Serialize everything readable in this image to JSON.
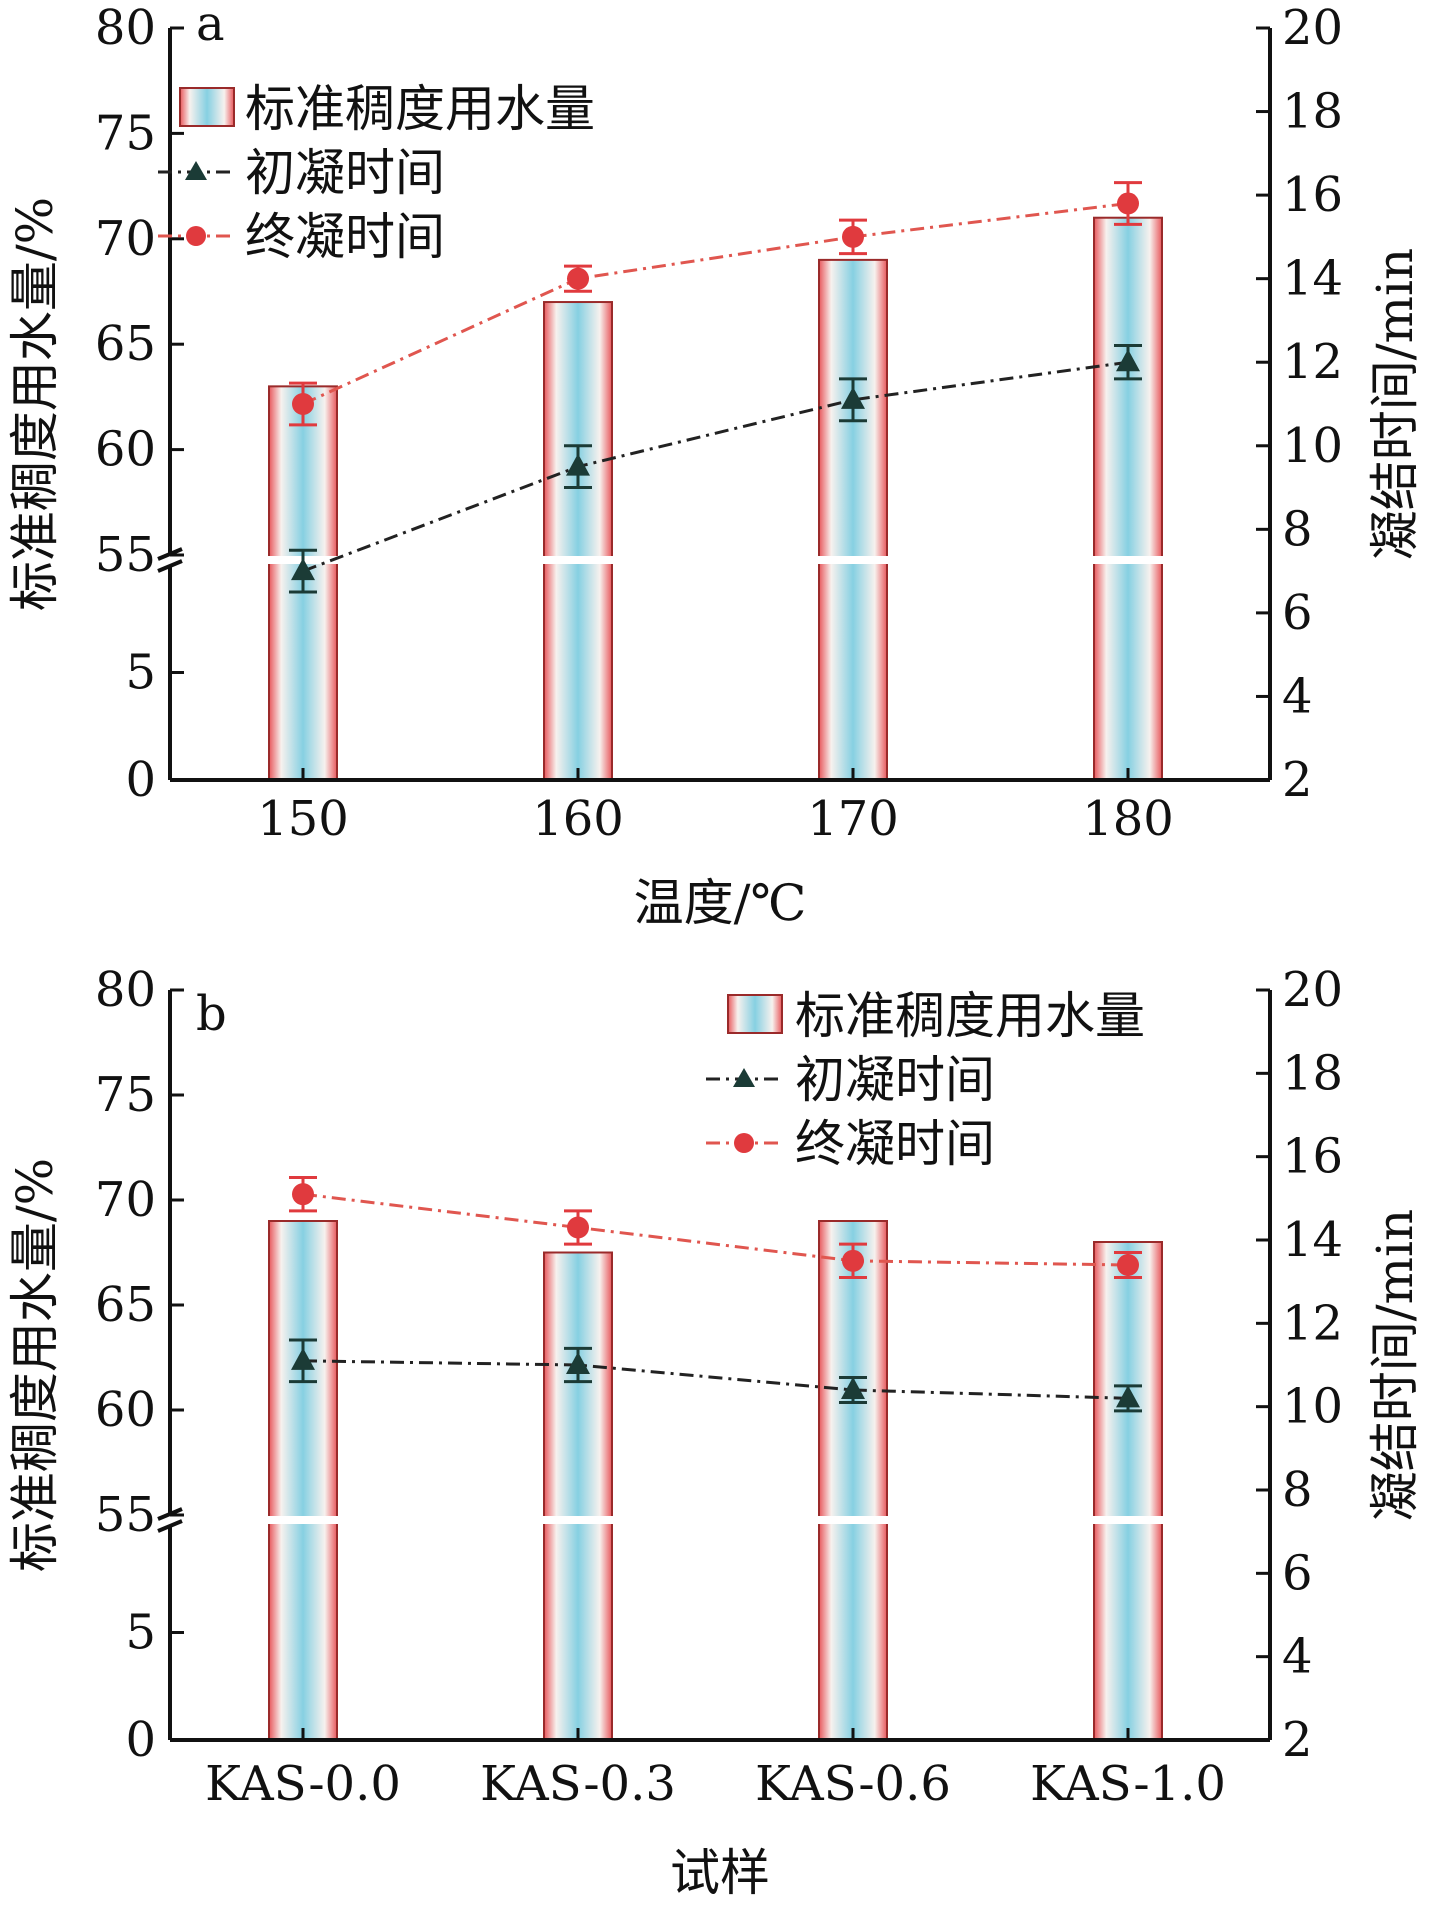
{
  "colors": {
    "axis": "#111111",
    "initial_setting": "#1b3b36",
    "final_setting": "#e03a3e",
    "initial_line": "#222222",
    "final_line": "#e0564f",
    "bar_edge": "#9a2a2a",
    "bar_red": "#e8585c",
    "bar_white": "#f7f1ee",
    "bar_blue": "#86d0e2"
  },
  "chart_data": [
    {
      "panel": "a",
      "type": "bar",
      "xlabel": "温度/℃",
      "ylabel_left": "标准稠度用水量/%",
      "ylabel_right": "凝结时间/min",
      "categories": [
        "150",
        "160",
        "170",
        "180"
      ],
      "left_axis": {
        "broken": true,
        "lower_ticks": [
          "0",
          "5"
        ],
        "upper_ticks": [
          "55",
          "60",
          "65",
          "70",
          "75",
          "80"
        ],
        "upper_range": [
          55,
          80
        ],
        "lower_range": [
          0,
          10
        ]
      },
      "right_axis": {
        "ticks": [
          "2",
          "4",
          "6",
          "8",
          "10",
          "12",
          "14",
          "16",
          "18",
          "20"
        ],
        "range": [
          2,
          20
        ]
      },
      "legend": {
        "position": "top-left",
        "entries": [
          "标准稠度用水量",
          "初凝时间",
          "终凝时间"
        ]
      },
      "series": [
        {
          "name": "标准稠度用水量",
          "type": "bar",
          "axis": "left",
          "values": [
            63.0,
            67.0,
            69.0,
            71.0
          ]
        },
        {
          "name": "初凝时间",
          "type": "line",
          "axis": "right",
          "marker": "triangle",
          "values": [
            7.0,
            9.5,
            11.1,
            12.0
          ],
          "errors": [
            0.5,
            0.5,
            0.5,
            0.4
          ]
        },
        {
          "name": "终凝时间",
          "type": "line",
          "axis": "right",
          "marker": "circle",
          "values": [
            11.0,
            14.0,
            15.0,
            15.8
          ],
          "errors": [
            0.5,
            0.3,
            0.4,
            0.5
          ]
        }
      ]
    },
    {
      "panel": "b",
      "type": "bar",
      "xlabel": "试样",
      "ylabel_left": "标准稠度用水量/%",
      "ylabel_right": "凝结时间/min",
      "categories": [
        "KAS-0.0",
        "KAS-0.3",
        "KAS-0.6",
        "KAS-1.0"
      ],
      "left_axis": {
        "broken": true,
        "lower_ticks": [
          "0",
          "5"
        ],
        "upper_ticks": [
          "55",
          "60",
          "65",
          "70",
          "75",
          "80"
        ],
        "upper_range": [
          55,
          80
        ],
        "lower_range": [
          0,
          10
        ]
      },
      "right_axis": {
        "ticks": [
          "2",
          "4",
          "6",
          "8",
          "10",
          "12",
          "14",
          "16",
          "18",
          "20"
        ],
        "range": [
          2,
          20
        ]
      },
      "legend": {
        "position": "top-right",
        "entries": [
          "标准稠度用水量",
          "初凝时间",
          "终凝时间"
        ]
      },
      "series": [
        {
          "name": "标准稠度用水量",
          "type": "bar",
          "axis": "left",
          "values": [
            69.0,
            67.5,
            69.0,
            68.0
          ]
        },
        {
          "name": "初凝时间",
          "type": "line",
          "axis": "right",
          "marker": "triangle",
          "values": [
            11.1,
            11.0,
            10.4,
            10.2
          ],
          "errors": [
            0.5,
            0.4,
            0.3,
            0.3
          ]
        },
        {
          "name": "终凝时间",
          "type": "line",
          "axis": "right",
          "marker": "circle",
          "values": [
            15.1,
            14.3,
            13.5,
            13.4
          ],
          "errors": [
            0.4,
            0.4,
            0.4,
            0.3
          ]
        }
      ]
    }
  ]
}
